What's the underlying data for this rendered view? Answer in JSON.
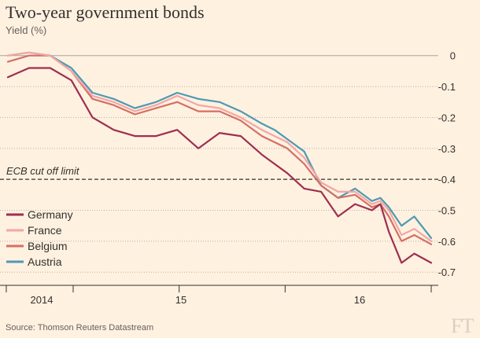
{
  "title": "Two-year government bonds",
  "subtitle": "Yield (%)",
  "source": "Source: Thomson Reuters Datastream",
  "logo": "FT",
  "chart_data": {
    "type": "line",
    "title": "Two-year government bonds",
    "ylabel": "Yield (%)",
    "xlabel": "",
    "ylim": [
      -0.73,
      0.04
    ],
    "xlim": [
      0,
      1
    ],
    "y_ticks": [
      0,
      -0.1,
      -0.2,
      -0.3,
      -0.4,
      -0.5,
      -0.6,
      -0.7
    ],
    "y_tick_labels": [
      "0",
      "-0.1",
      "-0.2",
      "-0.3",
      "-0.4",
      "-0.5",
      "-0.6",
      "-0.7"
    ],
    "x_ticks": [
      0.1543,
      0.4046,
      0.6549
    ],
    "x_tick_labels": [
      "2014",
      "15",
      "16"
    ],
    "x_year_boundaries": [
      0.1543,
      0.4046,
      0.6549
    ],
    "grid": "horizontal-dotted",
    "legend": "bottom-left",
    "annotations": [
      {
        "text": "ECB cut off limit",
        "y": -0.4,
        "style": "dashed"
      }
    ],
    "series": [
      {
        "name": "Germany",
        "color": "#9E2F50",
        "x": [
          0.0,
          0.05,
          0.1,
          0.15,
          0.2,
          0.25,
          0.3,
          0.35,
          0.4,
          0.45,
          0.5,
          0.55,
          0.6,
          0.63,
          0.66,
          0.7,
          0.74,
          0.78,
          0.82,
          0.86,
          0.88,
          0.9,
          0.93,
          0.96,
          1.0
        ],
        "y": [
          -0.07,
          -0.04,
          -0.04,
          -0.08,
          -0.2,
          -0.24,
          -0.26,
          -0.26,
          -0.24,
          -0.3,
          -0.25,
          -0.26,
          -0.32,
          -0.35,
          -0.38,
          -0.43,
          -0.44,
          -0.52,
          -0.48,
          -0.5,
          -0.48,
          -0.57,
          -0.67,
          -0.64,
          -0.67
        ]
      },
      {
        "name": "France",
        "color": "#F2A7A4",
        "x": [
          0.0,
          0.05,
          0.1,
          0.15,
          0.2,
          0.25,
          0.3,
          0.35,
          0.4,
          0.45,
          0.5,
          0.55,
          0.6,
          0.63,
          0.66,
          0.7,
          0.74,
          0.78,
          0.82,
          0.86,
          0.88,
          0.9,
          0.93,
          0.96,
          1.0
        ],
        "y": [
          0.0,
          0.01,
          0.0,
          -0.05,
          -0.13,
          -0.15,
          -0.18,
          -0.16,
          -0.13,
          -0.16,
          -0.17,
          -0.2,
          -0.24,
          -0.26,
          -0.28,
          -0.33,
          -0.41,
          -0.44,
          -0.44,
          -0.48,
          -0.47,
          -0.5,
          -0.58,
          -0.56,
          -0.6
        ]
      },
      {
        "name": "Belgium",
        "color": "#D46F65",
        "x": [
          0.0,
          0.05,
          0.1,
          0.15,
          0.2,
          0.25,
          0.3,
          0.35,
          0.4,
          0.45,
          0.5,
          0.55,
          0.6,
          0.63,
          0.66,
          0.7,
          0.74,
          0.78,
          0.82,
          0.86,
          0.88,
          0.9,
          0.93,
          0.96,
          1.0
        ],
        "y": [
          -0.02,
          0.0,
          0.0,
          -0.05,
          -0.14,
          -0.16,
          -0.19,
          -0.17,
          -0.15,
          -0.18,
          -0.18,
          -0.21,
          -0.26,
          -0.28,
          -0.3,
          -0.35,
          -0.42,
          -0.46,
          -0.45,
          -0.49,
          -0.48,
          -0.52,
          -0.6,
          -0.58,
          -0.61
        ]
      },
      {
        "name": "Austria",
        "color": "#4E99B4",
        "x": [
          0.0,
          0.05,
          0.1,
          0.15,
          0.2,
          0.25,
          0.3,
          0.35,
          0.4,
          0.45,
          0.5,
          0.55,
          0.6,
          0.63,
          0.66,
          0.7,
          0.74,
          0.78,
          0.82,
          0.86,
          0.88,
          0.9,
          0.93,
          0.96,
          1.0
        ],
        "y": [
          0.0,
          0.01,
          0.0,
          -0.04,
          -0.12,
          -0.14,
          -0.17,
          -0.15,
          -0.12,
          -0.14,
          -0.15,
          -0.18,
          -0.22,
          -0.24,
          -0.27,
          -0.31,
          -0.42,
          -0.46,
          -0.43,
          -0.47,
          -0.46,
          -0.49,
          -0.55,
          -0.52,
          -0.59
        ]
      }
    ]
  }
}
